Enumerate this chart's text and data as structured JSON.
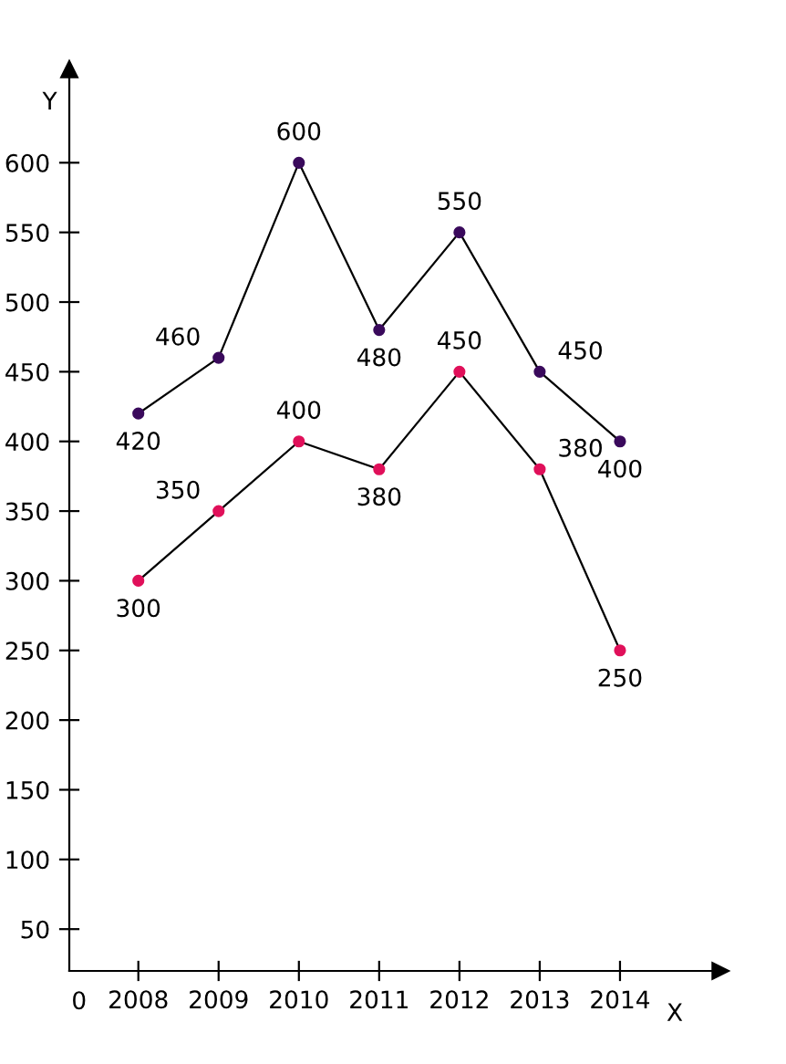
{
  "chart_data": {
    "type": "line",
    "xlabel": "X",
    "ylabel": "Y",
    "categories": [
      "2008",
      "2009",
      "2010",
      "2011",
      "2012",
      "2013",
      "2014"
    ],
    "series": [
      {
        "color": "#3a0a5c",
        "values": [
          420,
          460,
          600,
          480,
          550,
          450,
          400
        ]
      },
      {
        "color": "#e0105a",
        "values": [
          300,
          350,
          400,
          380,
          450,
          380,
          250
        ]
      }
    ],
    "ylim": [
      20,
      667
    ],
    "yticks": [
      50,
      100,
      150,
      200,
      250,
      300,
      350,
      400,
      450,
      500,
      550,
      600
    ],
    "annotations": [
      "0"
    ],
    "data_labels": true,
    "marker": "circle",
    "grid": false,
    "legend": false
  }
}
